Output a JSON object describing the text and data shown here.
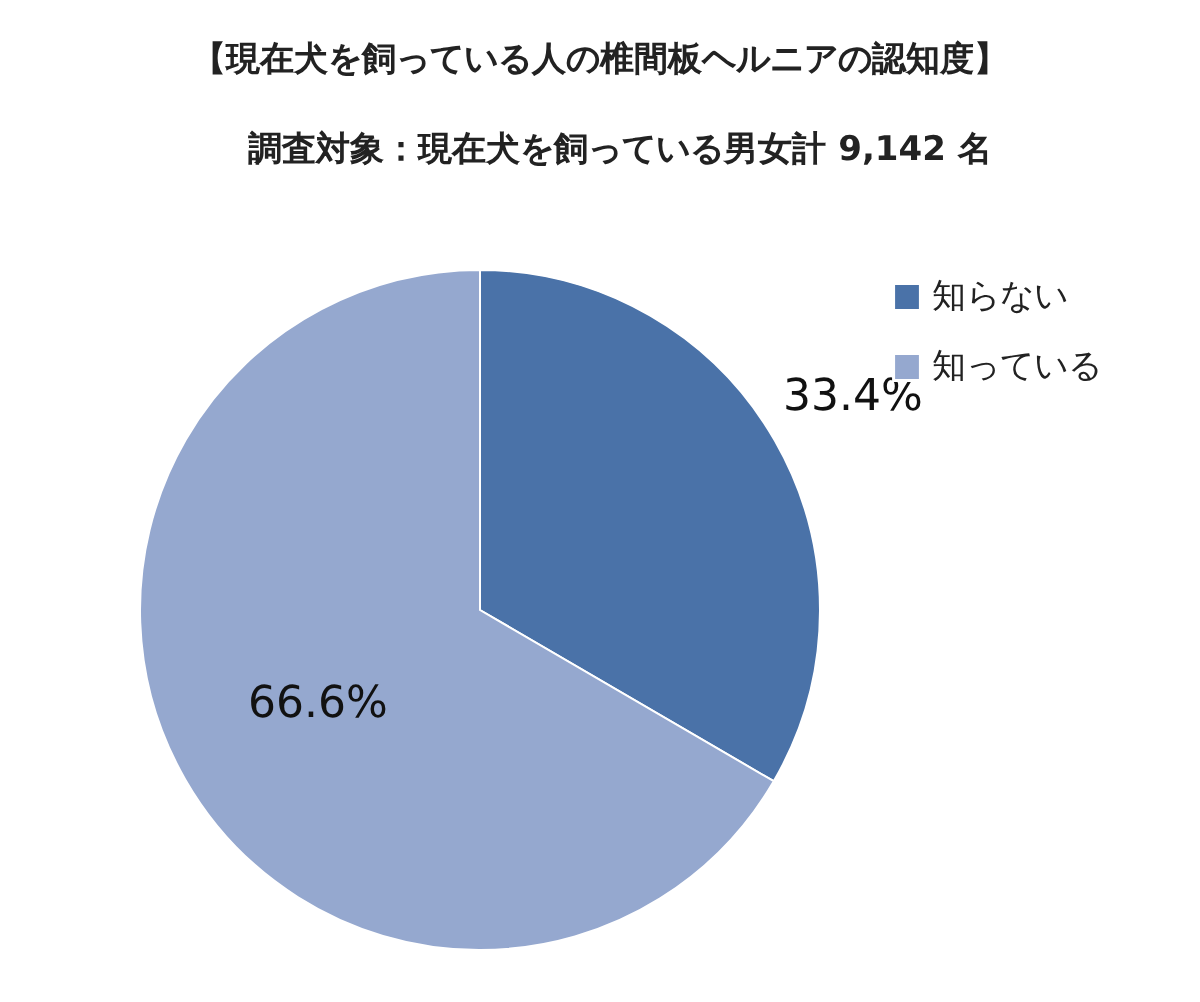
{
  "chart_data": {
    "type": "pie",
    "title": "【現在犬を飼っている人の椎間板ヘルニアの認知度】",
    "subtitle": "調査対象：現在犬を飼っている男女計 9,142 名",
    "categories": [
      "知らない",
      "知っている"
    ],
    "values": [
      33.4,
      66.6
    ],
    "colors": [
      "#4a72a8",
      "#95a8cf"
    ],
    "value_labels": [
      "33.4%",
      "66.6%"
    ],
    "legend": "top right"
  }
}
